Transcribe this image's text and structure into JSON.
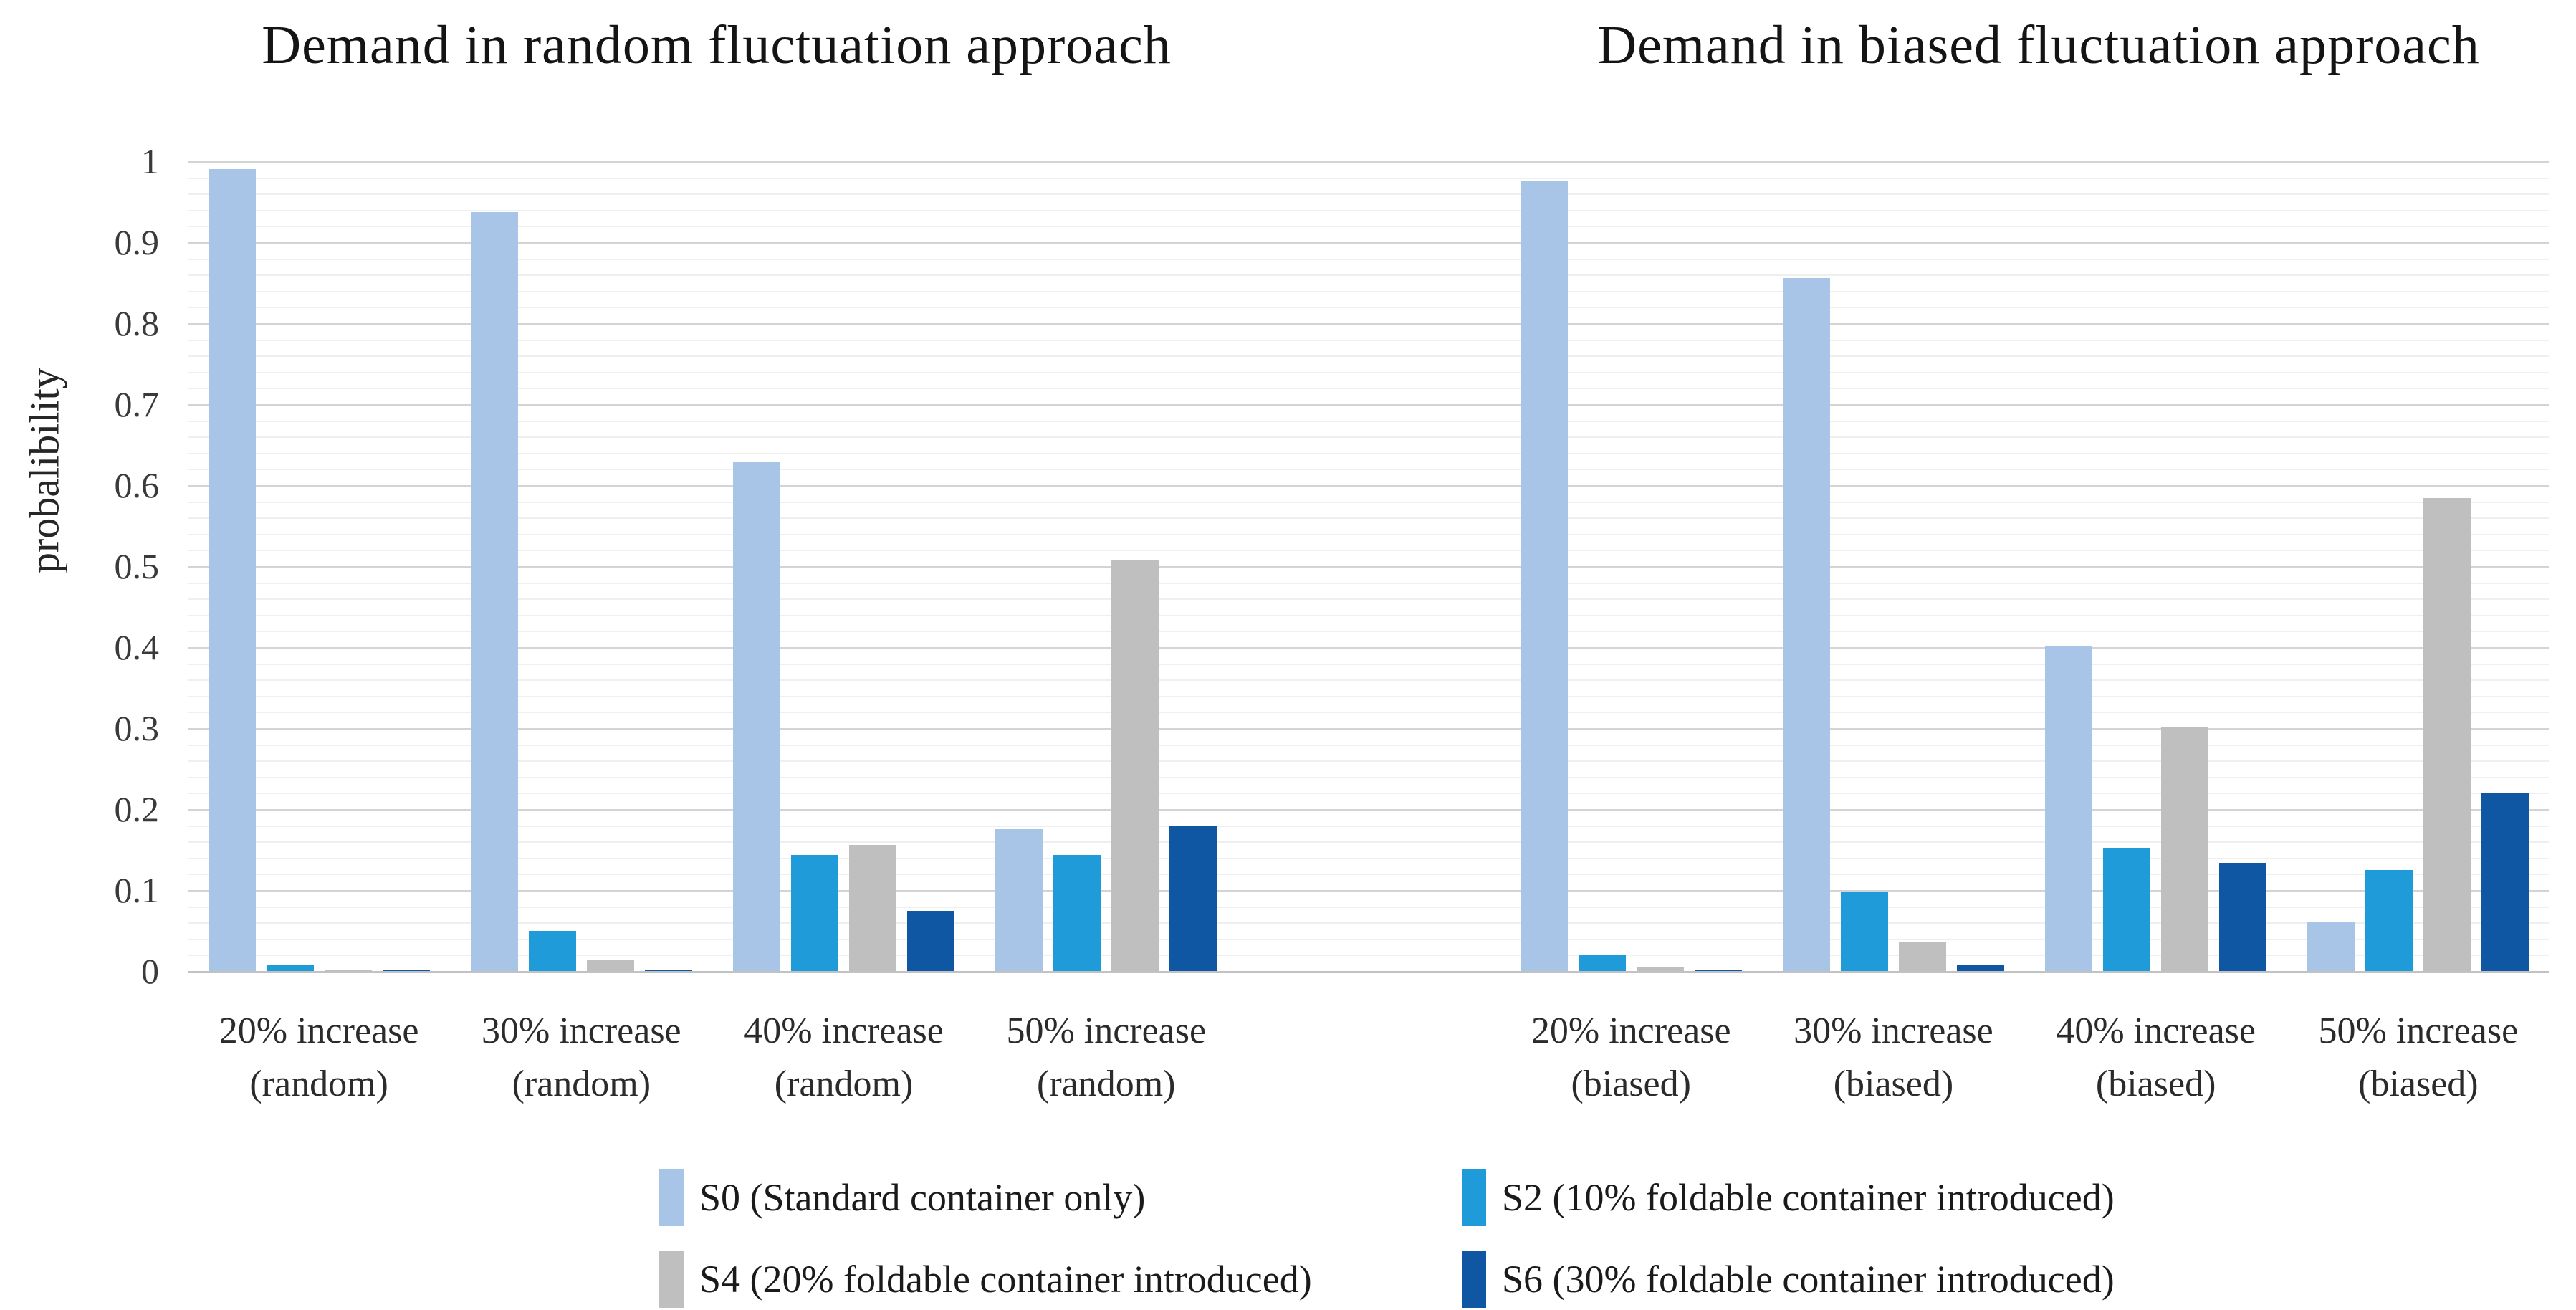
{
  "titles": {
    "left": "Demand in random fluctuation approach",
    "right": "Demand in biased fluctuation approach"
  },
  "y_axis": {
    "label": "probalibility",
    "ticks": [
      "1",
      "0.9",
      "0.8",
      "0.7",
      "0.6",
      "0.5",
      "0.4",
      "0.3",
      "0.2",
      "0.1",
      "0"
    ]
  },
  "chart_data": {
    "type": "bar",
    "titles": [
      "Demand in random fluctuation approach",
      "Demand in biased fluctuation approach"
    ],
    "ylabel": "probalibility",
    "ylim": [
      0,
      1
    ],
    "ytick_interval": 0.1,
    "minor_gridline_interval": 0.02,
    "grid": "on",
    "legend_position": "bottom",
    "categories": [
      "20% increase (random)",
      "30% increase (random)",
      "40% increase (random)",
      "50% increase (random)",
      "20% increase (biased)",
      "30% increase (biased)",
      "40% increase (biased)",
      "50% increase (biased)"
    ],
    "series": [
      {
        "name": "S0 (Standard container only)",
        "color": "#a8c5e8",
        "values": [
          0.99,
          0.937,
          0.628,
          0.175,
          0.975,
          0.856,
          0.401,
          0.061
        ]
      },
      {
        "name": "S2 (10% foldable container introduced)",
        "color": "#1e9bd8",
        "values": [
          0.008,
          0.05,
          0.143,
          0.143,
          0.02,
          0.097,
          0.151,
          0.125
        ]
      },
      {
        "name": "S4 (20% foldable container introduced)",
        "color": "#bfbfbf",
        "values": [
          0.002,
          0.013,
          0.156,
          0.507,
          0.005,
          0.035,
          0.301,
          0.584
        ]
      },
      {
        "name": "S6 (30% foldable container introduced)",
        "color": "#0f57a2",
        "values": [
          0.001,
          0.002,
          0.074,
          0.179,
          0.002,
          0.008,
          0.134,
          0.22
        ]
      }
    ]
  },
  "style_colors": {
    "minor_gridline": "#efefef",
    "major_gridline": "#d4d4d4",
    "axis_line": "#c2c2c2"
  }
}
